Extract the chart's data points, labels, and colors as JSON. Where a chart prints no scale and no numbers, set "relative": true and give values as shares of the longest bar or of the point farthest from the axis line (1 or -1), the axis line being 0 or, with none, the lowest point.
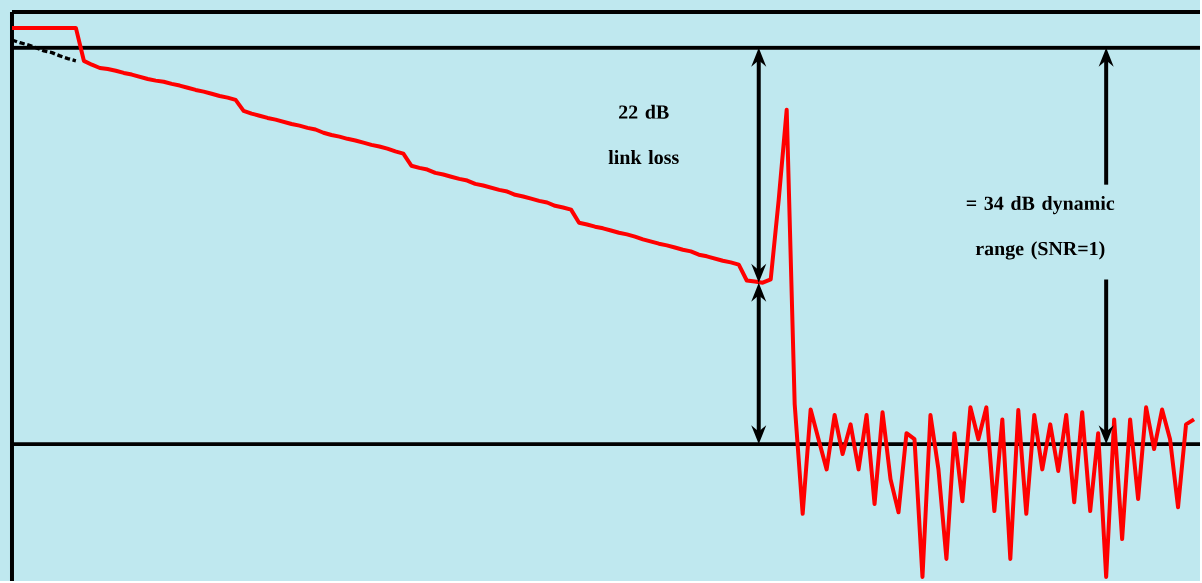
{
  "chart_data": {
    "type": "line",
    "relative": true,
    "categories": [
      null,
      null,
      null,
      null,
      null,
      null,
      null,
      null,
      null,
      null,
      null,
      null,
      null,
      null,
      null,
      null,
      null,
      null,
      null,
      null,
      null,
      null,
      null,
      null,
      null,
      null,
      null,
      null,
      null,
      null,
      null,
      null,
      null,
      null,
      null,
      null,
      null,
      null,
      null,
      null,
      null,
      null,
      null,
      null,
      null,
      null,
      null,
      null,
      null,
      null,
      null,
      null,
      null,
      null,
      null,
      null,
      null,
      null,
      null,
      null,
      null,
      null,
      null,
      null,
      null,
      null,
      null,
      null,
      null,
      null,
      null,
      null,
      null,
      null,
      null,
      null,
      null,
      null,
      null,
      null,
      null,
      null,
      null,
      null,
      null,
      null,
      null,
      null,
      null,
      null,
      null,
      null,
      null,
      null,
      null,
      null,
      null,
      null,
      null,
      null,
      null,
      null,
      null,
      null,
      null,
      null,
      null,
      null,
      null,
      null,
      null,
      null,
      null,
      null,
      null,
      null,
      null,
      null,
      null,
      null,
      null,
      null,
      null,
      null,
      null,
      null,
      null,
      null,
      null,
      null,
      null,
      null,
      null,
      null,
      null,
      null,
      null,
      null,
      null,
      null,
      null,
      null,
      null,
      null,
      null,
      null,
      null,
      null,
      null
    ],
    "series": [
      {
        "color": "#ff0000",
        "values": [
          1.0,
          1.0,
          1.0,
          1.0,
          1.0,
          1.0,
          1.0,
          1.0,
          1.0,
          0.94,
          0.933,
          0.927,
          0.925,
          0.922,
          0.918,
          0.915,
          0.911,
          0.907,
          0.904,
          0.902,
          0.898,
          0.895,
          0.891,
          0.887,
          0.884,
          0.88,
          0.876,
          0.873,
          0.869,
          0.849,
          0.844,
          0.84,
          0.836,
          0.833,
          0.829,
          0.825,
          0.822,
          0.818,
          0.815,
          0.809,
          0.805,
          0.802,
          0.798,
          0.795,
          0.791,
          0.787,
          0.784,
          0.78,
          0.775,
          0.771,
          0.749,
          0.745,
          0.742,
          0.736,
          0.733,
          0.729,
          0.725,
          0.722,
          0.716,
          0.713,
          0.709,
          0.705,
          0.702,
          0.696,
          0.693,
          0.689,
          0.685,
          0.682,
          0.676,
          0.673,
          0.669,
          0.645,
          0.642,
          0.638,
          0.635,
          0.631,
          0.627,
          0.624,
          0.62,
          0.615,
          0.611,
          0.607,
          0.604,
          0.6,
          0.596,
          0.593,
          0.587,
          0.584,
          0.58,
          0.576,
          0.573,
          0.569,
          0.54,
          0.538,
          0.536,
          0.542,
          0.687,
          0.851,
          0.315,
          0.115,
          0.305,
          0.25,
          0.196,
          0.295,
          0.224,
          0.278,
          0.196,
          0.295,
          0.133,
          0.3,
          0.178,
          0.118,
          0.262,
          0.251,
          0.0,
          0.295,
          0.196,
          0.033,
          0.262,
          0.138,
          0.309,
          0.251,
          0.309,
          0.12,
          0.287,
          0.033,
          0.304,
          0.115,
          0.295,
          0.196,
          0.278,
          0.193,
          0.295,
          0.136,
          0.3,
          0.12,
          0.262,
          0.0,
          0.287,
          0.069,
          0.287,
          0.142,
          0.309,
          0.233,
          0.305,
          0.251,
          0.127,
          0.278,
          0.287
        ]
      },
      {
        "color": "#000000",
        "line_style": "dashed",
        "values": [
          0.978,
          0.973,
          0.969,
          0.964,
          0.958,
          0.955,
          0.949,
          0.944,
          0.94,
          null,
          null,
          null,
          null,
          null,
          null,
          null,
          null,
          null,
          null,
          null,
          null,
          null,
          null,
          null,
          null,
          null,
          null,
          null,
          null,
          null,
          null,
          null,
          null,
          null,
          null,
          null,
          null,
          null,
          null,
          null,
          null,
          null,
          null,
          null,
          null,
          null,
          null,
          null,
          null,
          null,
          null,
          null,
          null,
          null,
          null,
          null,
          null,
          null,
          null,
          null,
          null,
          null,
          null,
          null,
          null,
          null,
          null,
          null,
          null,
          null,
          null,
          null,
          null,
          null,
          null,
          null,
          null,
          null,
          null,
          null,
          null,
          null,
          null,
          null,
          null,
          null,
          null,
          null,
          null,
          null,
          null,
          null,
          null,
          null,
          null,
          null,
          null,
          null,
          null,
          null,
          null,
          null,
          null,
          null,
          null,
          null,
          null,
          null,
          null,
          null,
          null,
          null,
          null,
          null,
          null,
          null,
          null,
          null,
          null,
          null,
          null,
          null,
          null,
          null,
          null,
          null,
          null,
          null,
          null,
          null,
          null,
          null,
          null,
          null,
          null,
          null,
          null,
          null,
          null,
          null,
          null,
          null,
          null,
          null,
          null,
          null,
          null,
          null,
          null
        ]
      }
    ],
    "ref_lines": [
      {
        "axis": "y",
        "value": 0.964,
        "color": "#000000"
      },
      {
        "axis": "y",
        "value": 0.242,
        "color": "#000000"
      }
    ],
    "annotations": [
      "22 dB link loss",
      "= 34 dB dynamic range (SNR=1)"
    ]
  }
}
